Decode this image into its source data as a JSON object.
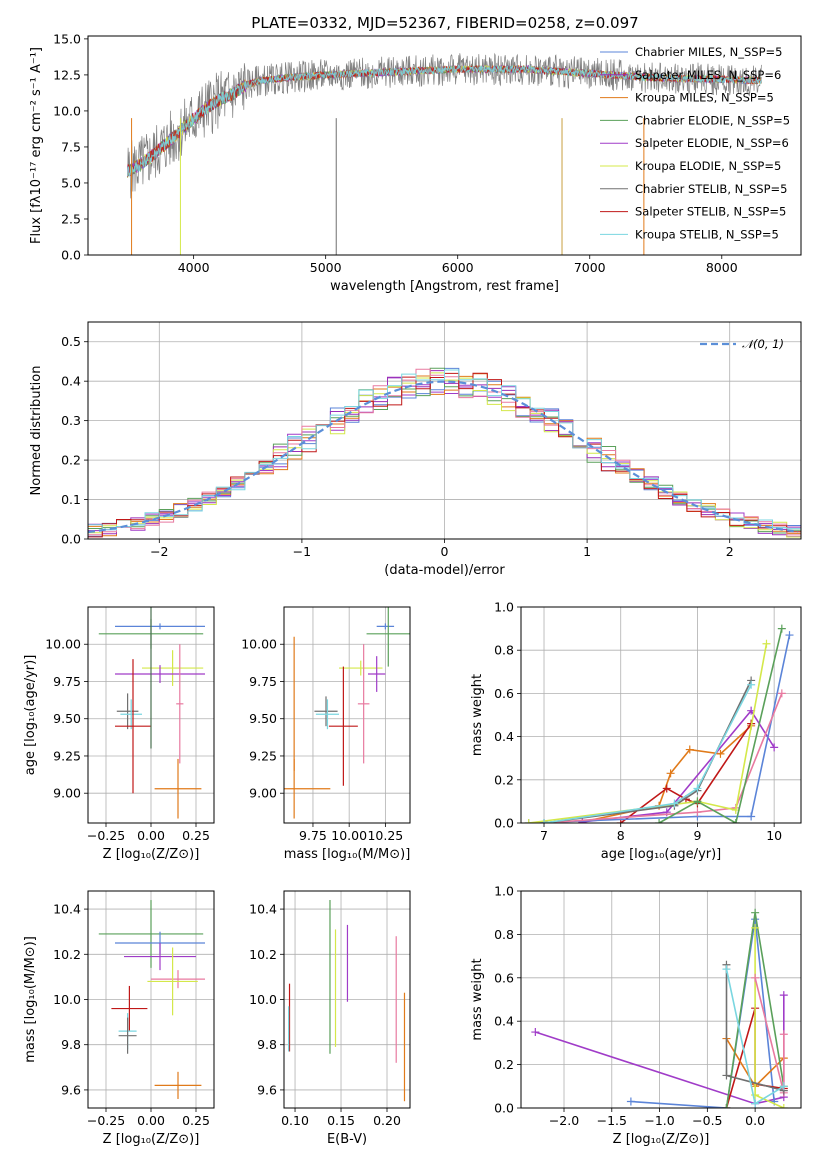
{
  "figure": {
    "title": "PLATE=0332, MJD=52367, FIBERID=0258, z=0.097"
  },
  "colors": {
    "Chabrier MILES": "#5b84d8",
    "Salpeter MILES": "#9b2fb8",
    "Kroupa MILES": "#e07a1a",
    "Chabrier ELODIE": "#5aa05a",
    "Salpeter ELODIE": "#a03cc8",
    "Kroupa ELODIE": "#d4e84a",
    "Chabrier STELIB": "#707070",
    "Salpeter STELIB": "#c01818",
    "Kroupa STELIB": "#7ad6e0",
    "extra_pink": "#e87aa0",
    "gaussian": "#5b8fd8"
  },
  "chart_data": [
    {
      "id": "spectrum",
      "type": "line",
      "title": "PLATE=0332, MJD=52367, FIBERID=0258, z=0.097",
      "xlabel": "wavelength [Angstrom, rest frame]",
      "ylabel": "Flux [fλ10⁻¹⁷ erg cm⁻² s⁻¹ A⁻¹]",
      "xlim": [
        3200,
        8600
      ],
      "ylim": [
        0,
        15.2
      ],
      "xticks": [
        4000,
        5000,
        6000,
        7000,
        8000
      ],
      "yticks": [
        0.0,
        2.5,
        5.0,
        7.5,
        10.0,
        12.5,
        15.0
      ],
      "grid": false,
      "legend_position": "right",
      "legend": [
        "Chabrier MILES, N_SSP=5",
        "Salpeter MILES, N_SSP=6",
        "Kroupa MILES, N_SSP=5",
        "Chabrier ELODIE, N_SSP=5",
        "Salpeter ELODIE, N_SSP=6",
        "Kroupa ELODIE, N_SSP=5",
        "Chabrier STELIB, N_SSP=5",
        "Salpeter STELIB, N_SSP=5",
        "Kroupa STELIB, N_SSP=5"
      ],
      "continuum_x": [
        3500,
        3600,
        3700,
        3800,
        3900,
        4000,
        4100,
        4200,
        4300,
        4400,
        4500,
        4700,
        5000,
        5500,
        6000,
        6500,
        7000,
        7500,
        8000,
        8300
      ],
      "continuum_y": [
        5.8,
        6.3,
        7.0,
        7.8,
        8.6,
        9.5,
        10.2,
        10.8,
        11.2,
        11.8,
        12.1,
        12.3,
        12.5,
        12.7,
        12.9,
        12.9,
        12.6,
        12.3,
        12.2,
        12.1
      ]
    },
    {
      "id": "residuals",
      "type": "line",
      "xlabel": "(data-model)/error",
      "ylabel": "Normed distribution",
      "xlim": [
        -2.5,
        2.5
      ],
      "ylim": [
        0,
        0.55
      ],
      "xticks": [
        -2,
        -1,
        0,
        1,
        2
      ],
      "yticks": [
        0.0,
        0.1,
        0.2,
        0.3,
        0.4,
        0.5
      ],
      "grid": true,
      "legend_position": "top-right",
      "legend": [
        "𝒩(0, 1)"
      ]
    },
    {
      "id": "age_vs_Z",
      "type": "scatter",
      "xlabel": "Z [log₁₀(Z/Z⊙)]",
      "ylabel": "age  [log₁₀(age/yr)]",
      "xlim": [
        -0.35,
        0.35
      ],
      "ylim": [
        8.8,
        10.25
      ],
      "xticks": [
        -0.25,
        0.0,
        0.25
      ],
      "yticks": [
        9.0,
        9.25,
        9.5,
        9.75,
        10.0
      ],
      "grid": true,
      "points": [
        {
          "color": "#5b84d8",
          "x": 0.05,
          "y": 10.12,
          "xerr": 0.25,
          "yerr": 0.02
        },
        {
          "color": "#5aa05a",
          "x": 0.0,
          "y": 10.07,
          "xerr": 0.29,
          "yerr": 0.1
        },
        {
          "color": "#d4e84a",
          "x": 0.12,
          "y": 9.84,
          "xerr": 0.17,
          "yerr": 0.12
        },
        {
          "color": "#a03cc8",
          "x": 0.05,
          "y": 9.8,
          "xerr": 0.25,
          "yerr": 0.06
        },
        {
          "color": "#e87aa0",
          "x": 0.16,
          "y": 9.6,
          "xerr": 0.02,
          "yerr": 0.4
        },
        {
          "color": "#707070",
          "x": -0.13,
          "y": 9.55,
          "xerr": 0.06,
          "yerr": 0.12
        },
        {
          "color": "#7ad6e0",
          "x": -0.11,
          "y": 9.53,
          "xerr": 0.06,
          "yerr": 0.1
        },
        {
          "color": "#c01818",
          "x": -0.1,
          "y": 9.45,
          "xerr": 0.1,
          "yerr": 0.45
        },
        {
          "color": "#e07a1a",
          "x": 0.15,
          "y": 9.03,
          "xerr": 0.13,
          "yerr": 0.2
        },
        {
          "color": "#4a7050",
          "x": 0.0,
          "y": 9.85,
          "xerr": 0.0,
          "yerr": 0.55
        }
      ]
    },
    {
      "id": "age_vs_mass",
      "type": "scatter",
      "xlabel": "mass [log₁₀(M/M⊙)]",
      "ylabel": "",
      "xlim": [
        9.55,
        10.42
      ],
      "ylim": [
        8.8,
        10.25
      ],
      "xticks": [
        9.75,
        10.0,
        10.25
      ],
      "xticklabels": [
        "9.75",
        "10.00",
        "10.25"
      ],
      "yticks": [
        9.0,
        9.25,
        9.5,
        9.75,
        10.0
      ],
      "grid": true,
      "points": [
        {
          "color": "#5b84d8",
          "x": 10.25,
          "y": 10.12,
          "xerr": 0.06,
          "yerr": 0.02
        },
        {
          "color": "#5aa05a",
          "x": 10.27,
          "y": 10.07,
          "xerr": 0.15,
          "yerr": 0.22
        },
        {
          "color": "#d4e84a",
          "x": 10.08,
          "y": 9.84,
          "xerr": 0.15,
          "yerr": 0.05
        },
        {
          "color": "#a03cc8",
          "x": 10.19,
          "y": 9.8,
          "xerr": 0.06,
          "yerr": 0.12
        },
        {
          "color": "#e87aa0",
          "x": 10.1,
          "y": 9.6,
          "xerr": 0.04,
          "yerr": 0.4
        },
        {
          "color": "#707070",
          "x": 9.84,
          "y": 9.55,
          "xerr": 0.08,
          "yerr": 0.1
        },
        {
          "color": "#7ad6e0",
          "x": 9.85,
          "y": 9.53,
          "xerr": 0.08,
          "yerr": 0.1
        },
        {
          "color": "#c01818",
          "x": 9.96,
          "y": 9.45,
          "xerr": 0.1,
          "yerr": 0.4
        },
        {
          "color": "#e07a1a",
          "x": 9.62,
          "y": 9.03,
          "xerr": 0.25,
          "yerr": 0.2
        },
        {
          "color": "#e07a1a",
          "x": 9.62,
          "y": 9.6,
          "xerr": 0.0,
          "yerr": 0.45
        }
      ]
    },
    {
      "id": "massweight_vs_age",
      "type": "line",
      "xlabel": "age  [log₁₀(age/yr)]",
      "ylabel": "mass weight",
      "xlim": [
        6.7,
        10.35
      ],
      "ylim": [
        0,
        1.0
      ],
      "xticks": [
        7,
        8,
        9,
        10
      ],
      "yticks": [
        0.0,
        0.2,
        0.4,
        0.6,
        0.8,
        1.0
      ],
      "grid": true,
      "series": [
        {
          "color": "#e07a1a",
          "x": [
            7.5,
            8.5,
            8.65,
            8.9,
            9.3,
            9.7
          ],
          "y": [
            0.005,
            0.08,
            0.23,
            0.34,
            0.32,
            0.45
          ]
        },
        {
          "color": "#a03cc8",
          "x": [
            7.5,
            8.6,
            9.7,
            10.0
          ],
          "y": [
            0.005,
            0.05,
            0.52,
            0.35
          ]
        },
        {
          "color": "#c01818",
          "x": [
            8.0,
            8.6,
            8.85,
            9.0,
            9.7
          ],
          "y": [
            0.0,
            0.16,
            0.11,
            0.09,
            0.46
          ]
        },
        {
          "color": "#5b84d8",
          "x": [
            6.8,
            9.0,
            9.7,
            10.2
          ],
          "y": [
            0.0,
            0.03,
            0.03,
            0.87
          ]
        },
        {
          "color": "#e87aa0",
          "x": [
            7.0,
            9.0,
            9.5,
            10.1
          ],
          "y": [
            0.0,
            0.05,
            0.07,
            0.6
          ]
        },
        {
          "color": "#d4e84a",
          "x": [
            6.8,
            9.0,
            9.5,
            9.9
          ],
          "y": [
            0.0,
            0.1,
            0.06,
            0.83
          ]
        },
        {
          "color": "#5aa05a",
          "x": [
            8.5,
            9.0,
            9.5,
            10.1
          ],
          "y": [
            0.0,
            0.1,
            0.0,
            0.9
          ]
        },
        {
          "color": "#707070",
          "x": [
            7.0,
            8.7,
            9.0,
            9.7
          ],
          "y": [
            0.0,
            0.08,
            0.15,
            0.66
          ]
        },
        {
          "color": "#7ad6e0",
          "x": [
            7.0,
            8.7,
            9.0,
            9.7
          ],
          "y": [
            0.0,
            0.09,
            0.16,
            0.64
          ]
        }
      ]
    },
    {
      "id": "mass_vs_Z",
      "type": "scatter",
      "xlabel": "Z [log₁₀(Z/Z⊙)]",
      "ylabel": "mass [log₁₀(M/M⊙)]",
      "xlim": [
        -0.35,
        0.35
      ],
      "ylim": [
        9.52,
        10.48
      ],
      "xticks": [
        -0.25,
        0.0,
        0.25
      ],
      "yticks": [
        9.6,
        9.8,
        10.0,
        10.2,
        10.4
      ],
      "grid": true,
      "points": [
        {
          "color": "#5aa05a",
          "x": 0.0,
          "y": 10.29,
          "xerr": 0.29,
          "yerr": 0.15
        },
        {
          "color": "#5b84d8",
          "x": 0.05,
          "y": 10.25,
          "xerr": 0.25,
          "yerr": 0.05
        },
        {
          "color": "#a03cc8",
          "x": 0.05,
          "y": 10.19,
          "xerr": 0.2,
          "yerr": 0.06
        },
        {
          "color": "#e87aa0",
          "x": 0.15,
          "y": 10.09,
          "xerr": 0.15,
          "yerr": 0.04
        },
        {
          "color": "#d4e84a",
          "x": 0.12,
          "y": 10.08,
          "xerr": 0.14,
          "yerr": 0.15
        },
        {
          "color": "#c01818",
          "x": -0.12,
          "y": 9.96,
          "xerr": 0.1,
          "yerr": 0.1
        },
        {
          "color": "#7ad6e0",
          "x": -0.13,
          "y": 9.86,
          "xerr": 0.05,
          "yerr": 0.08
        },
        {
          "color": "#707070",
          "x": -0.13,
          "y": 9.84,
          "xerr": 0.05,
          "yerr": 0.08
        },
        {
          "color": "#e07a1a",
          "x": 0.15,
          "y": 9.62,
          "xerr": 0.13,
          "yerr": 0.06
        }
      ]
    },
    {
      "id": "mass_vs_EBV",
      "type": "scatter",
      "xlabel": "E(B-V)",
      "ylabel": "",
      "xlim": [
        0.088,
        0.225
      ],
      "ylim": [
        9.52,
        10.48
      ],
      "xticks": [
        0.1,
        0.15,
        0.2
      ],
      "xticklabels": [
        "0.10",
        "0.15",
        "0.20"
      ],
      "yticks": [
        9.6,
        9.8,
        10.0,
        10.2,
        10.4
      ],
      "grid": true,
      "points": [
        {
          "color": "#c01818",
          "x": 0.094,
          "y": 9.92,
          "xerr": 0.0,
          "yerr": 0.15
        },
        {
          "color": "#7ad6e0",
          "x": 0.093,
          "y": 9.87,
          "xerr": 0.0,
          "yerr": 0.1
        },
        {
          "color": "#5aa05a",
          "x": 0.138,
          "y": 10.1,
          "xerr": 0.0,
          "yerr": 0.34
        },
        {
          "color": "#d4e84a",
          "x": 0.144,
          "y": 10.05,
          "xerr": 0.0,
          "yerr": 0.26
        },
        {
          "color": "#a03cc8",
          "x": 0.157,
          "y": 10.16,
          "xerr": 0.0,
          "yerr": 0.17
        },
        {
          "color": "#e87aa0",
          "x": 0.21,
          "y": 10.0,
          "xerr": 0.0,
          "yerr": 0.28
        },
        {
          "color": "#e07a1a",
          "x": 0.219,
          "y": 9.79,
          "xerr": 0.0,
          "yerr": 0.24
        }
      ]
    },
    {
      "id": "massweight_vs_Z",
      "type": "line",
      "xlabel": "Z [log₁₀(Z/Z⊙)]",
      "ylabel": "mass weight",
      "xlim": [
        -2.45,
        0.48
      ],
      "ylim": [
        0,
        1.0
      ],
      "xticks": [
        -2.0,
        -1.5,
        -1.0,
        -0.5,
        0.0
      ],
      "yticks": [
        0.0,
        0.2,
        0.4,
        0.6,
        0.8,
        1.0
      ],
      "grid": true,
      "series": [
        {
          "color": "#a03cc8",
          "x": [
            -2.3,
            0.0,
            0.3,
            0.3
          ],
          "y": [
            0.35,
            0.02,
            0.05,
            0.52
          ]
        },
        {
          "color": "#5b84d8",
          "x": [
            -1.3,
            -0.3,
            0.0,
            0.2
          ],
          "y": [
            0.03,
            0.0,
            0.87,
            0.03
          ]
        },
        {
          "color": "#c01818",
          "x": [
            -0.3,
            0.0,
            0.0,
            0.3
          ],
          "y": [
            0.0,
            0.46,
            0.11,
            0.09
          ]
        },
        {
          "color": "#e07a1a",
          "x": [
            -0.3,
            0.0,
            0.3
          ],
          "y": [
            0.32,
            0.1,
            0.23
          ]
        },
        {
          "color": "#5aa05a",
          "x": [
            -0.3,
            0.0,
            0.3
          ],
          "y": [
            0.0,
            0.9,
            0.1
          ]
        },
        {
          "color": "#d4e84a",
          "x": [
            0.0,
            0.0,
            0.3
          ],
          "y": [
            0.83,
            0.06,
            0.0
          ]
        },
        {
          "color": "#e87aa0",
          "x": [
            0.0,
            0.3,
            0.3
          ],
          "y": [
            0.6,
            0.07,
            0.34
          ]
        },
        {
          "color": "#707070",
          "x": [
            -0.3,
            -0.3,
            0.3
          ],
          "y": [
            0.66,
            0.15,
            0.08
          ]
        },
        {
          "color": "#7ad6e0",
          "x": [
            -0.3,
            0.0,
            0.3
          ],
          "y": [
            0.64,
            0.02,
            0.1
          ]
        }
      ]
    }
  ]
}
